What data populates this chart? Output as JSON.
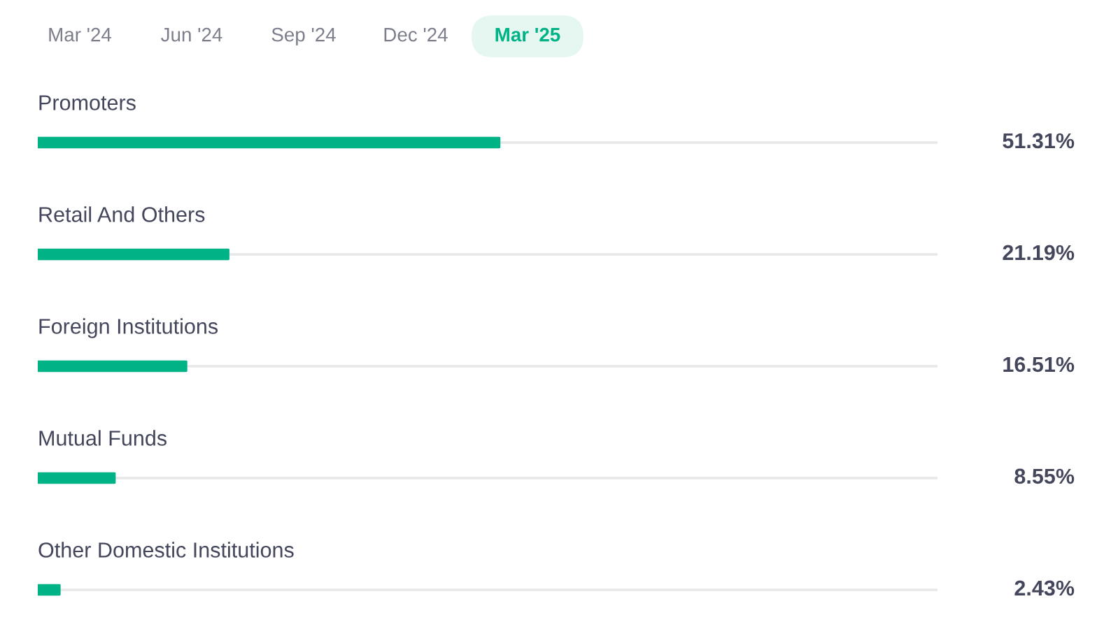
{
  "chart_data": {
    "type": "bar",
    "orientation": "horizontal",
    "title": "Mar '25",
    "annotations": [
      "Mar '24",
      "Jun '24",
      "Sep '24",
      "Dec '24"
    ],
    "categories": [
      "Promoters",
      "Retail And Others",
      "Foreign Institutions",
      "Mutual Funds",
      "Other Domestic Institutions"
    ],
    "values": [
      51.31,
      21.19,
      16.51,
      8.55,
      2.43
    ],
    "value_labels": [
      "51.31%",
      "21.19%",
      "16.51%",
      "8.55%",
      "2.43%"
    ],
    "color": "#00b386",
    "xlim": [
      0,
      100
    ],
    "tick_labels": "y"
  }
}
